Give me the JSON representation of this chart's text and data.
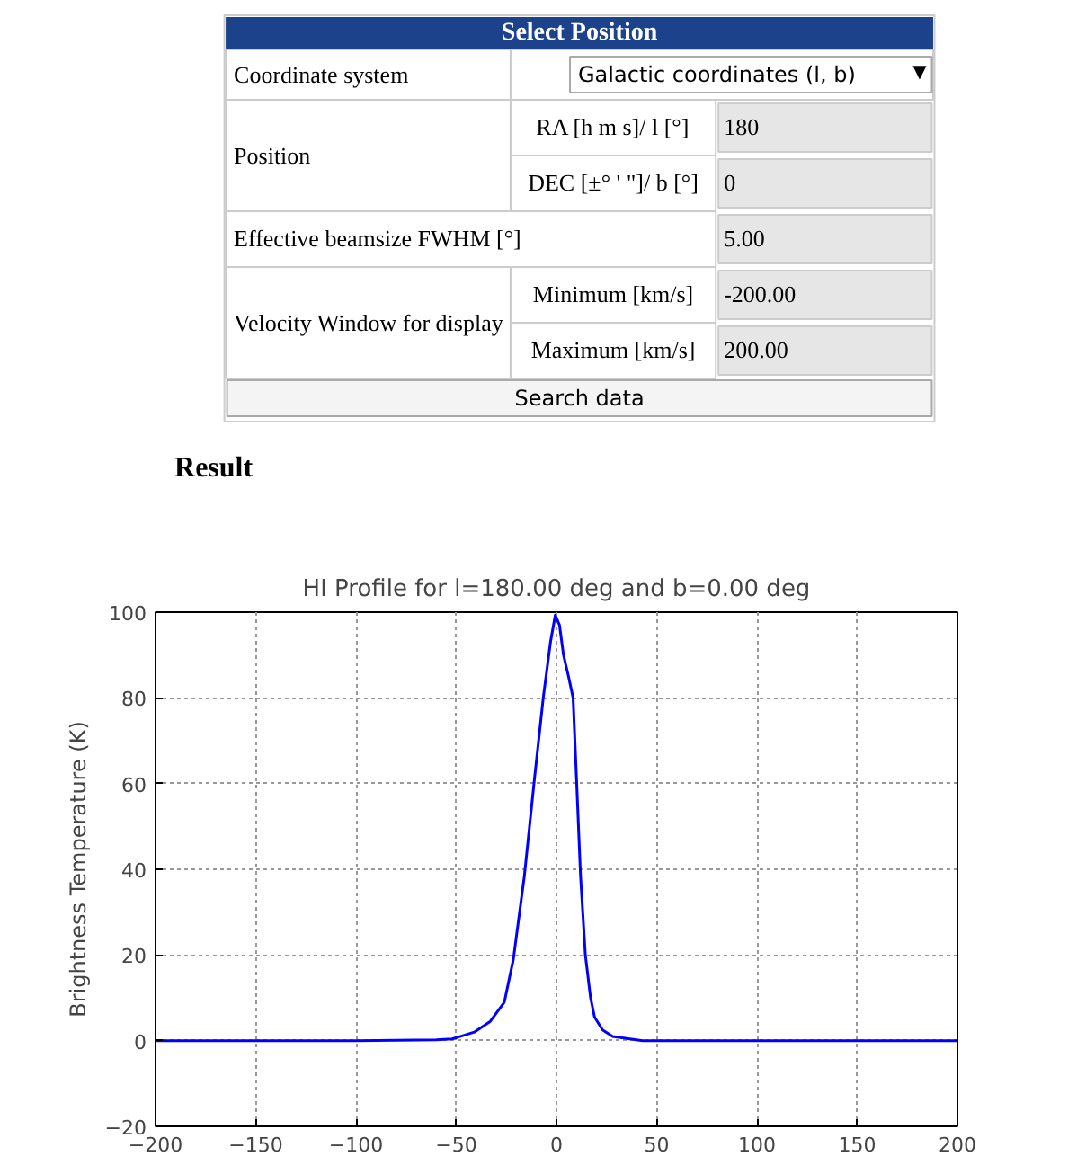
{
  "chart_data": [
    {
      "type": "other",
      "title": "Select Position",
      "annotations": [
        "Coordinate system",
        "Galactic coordinates (l, b)",
        "Position",
        "RA [h m s]/ l [°]",
        "180",
        "DEC [±° ' \"]/ b [°]",
        "0",
        "Effective beamsize FWHM [°]",
        "5.00",
        "Velocity Window for display",
        "Minimum [km/s]",
        "-200.00",
        "Maximum [km/s]",
        "200.00",
        "Search data",
        "Result",
        "▼"
      ]
    },
    {
      "type": "line",
      "title": "HI Profile for l=180.00 deg and b=0.00 deg",
      "ylabel": "Brightness Temperature (K)",
      "x": [
        -200,
        -100,
        -60,
        -52,
        -41,
        -33,
        -26,
        -21.5,
        -16,
        -11,
        -6.6,
        -3,
        -0.6,
        1.5,
        3.5,
        6,
        8.3,
        10,
        12,
        14.4,
        17,
        19,
        23,
        28,
        43,
        100,
        200
      ],
      "series": [
        {
          "color": "#0000ff",
          "values": [
            0,
            0,
            0.2,
            0.4,
            2,
            4.5,
            9,
            19,
            38.5,
            61,
            80,
            93,
            99.3,
            97,
            90,
            85,
            80,
            61,
            38.5,
            20,
            10,
            5.5,
            2.5,
            1,
            0,
            0,
            0
          ]
        }
      ],
      "xlim": [
        -200,
        200
      ],
      "ylim": [
        -20,
        100
      ],
      "xticks": [
        -200,
        -150,
        -100,
        -50,
        0,
        50,
        100,
        150,
        200
      ],
      "yticks": [
        -20,
        0,
        20,
        40,
        60,
        80,
        100
      ],
      "grid": true,
      "marker": "none",
      "line_style": "solid"
    }
  ]
}
